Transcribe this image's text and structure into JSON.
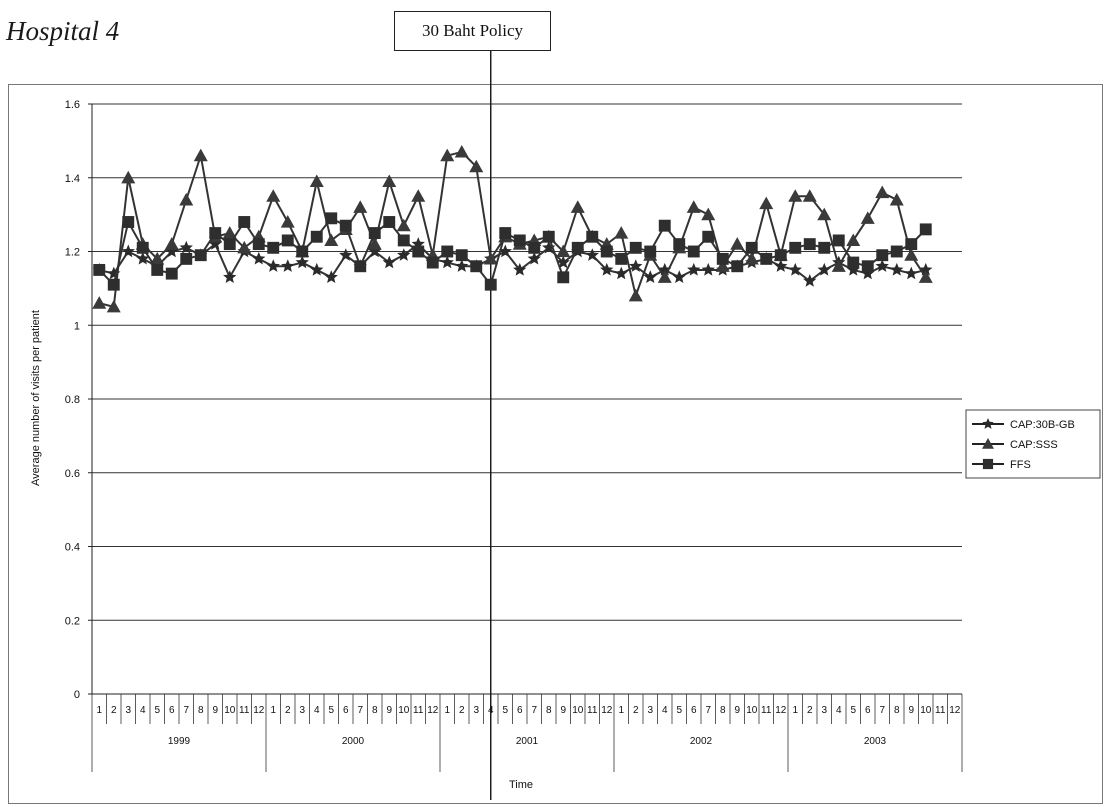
{
  "page_title": "Hospital 4",
  "annotation": {
    "label": "30 Baht Policy",
    "x": "2001-04"
  },
  "chart_data": {
    "type": "line",
    "xlabel": "Time",
    "ylabel": "Average number of visits per patient",
    "ylim": [
      0,
      1.6
    ],
    "yticks": [
      0,
      0.2,
      0.4,
      0.6,
      0.8,
      1,
      1.2,
      1.4,
      1.6
    ],
    "ytick_labels": [
      "0",
      "0.2",
      "0.4",
      "0.6",
      "0.8",
      "1",
      "1.2",
      "1.4",
      "1.6"
    ],
    "grid": true,
    "legend_position": "right",
    "years": [
      "1999",
      "2000",
      "2001",
      "2002",
      "2003"
    ],
    "months": [
      "1",
      "2",
      "3",
      "4",
      "5",
      "6",
      "7",
      "8",
      "9",
      "10",
      "11",
      "12"
    ],
    "x": [
      "1999-01",
      "1999-02",
      "1999-03",
      "1999-04",
      "1999-05",
      "1999-06",
      "1999-07",
      "1999-08",
      "1999-09",
      "1999-10",
      "1999-11",
      "1999-12",
      "2000-01",
      "2000-02",
      "2000-03",
      "2000-04",
      "2000-05",
      "2000-06",
      "2000-07",
      "2000-08",
      "2000-09",
      "2000-10",
      "2000-11",
      "2000-12",
      "2001-01",
      "2001-02",
      "2001-03",
      "2001-04",
      "2001-05",
      "2001-06",
      "2001-07",
      "2001-08",
      "2001-09",
      "2001-10",
      "2001-11",
      "2001-12",
      "2002-01",
      "2002-02",
      "2002-03",
      "2002-04",
      "2002-05",
      "2002-06",
      "2002-07",
      "2002-08",
      "2002-09",
      "2002-10",
      "2002-11",
      "2002-12",
      "2003-01",
      "2003-02",
      "2003-03",
      "2003-04",
      "2003-05",
      "2003-06",
      "2003-07",
      "2003-08",
      "2003-09",
      "2003-10"
    ],
    "series": [
      {
        "name": "CAP:30B-GB",
        "marker": "star",
        "values": [
          1.15,
          1.14,
          1.2,
          1.18,
          1.16,
          1.2,
          1.21,
          1.19,
          1.22,
          1.13,
          1.2,
          1.18,
          1.16,
          1.16,
          1.17,
          1.15,
          1.13,
          1.19,
          1.16,
          1.2,
          1.17,
          1.19,
          1.22,
          1.18,
          1.17,
          1.16,
          1.16,
          1.18,
          1.2,
          1.15,
          1.18,
          1.21,
          1.17,
          1.2,
          1.19,
          1.15,
          1.14,
          1.16,
          1.13,
          1.15,
          1.13,
          1.15,
          1.15,
          1.15,
          1.16,
          1.17,
          1.18,
          1.16,
          1.15,
          1.12,
          1.15,
          1.17,
          1.15,
          1.14,
          1.16,
          1.15,
          1.14,
          1.15
        ]
      },
      {
        "name": "CAP:SSS",
        "marker": "triangle",
        "values": [
          1.06,
          1.05,
          1.4,
          1.22,
          1.18,
          1.22,
          1.34,
          1.46,
          1.24,
          1.25,
          1.21,
          1.24,
          1.35,
          1.28,
          1.2,
          1.39,
          1.23,
          1.26,
          1.32,
          1.22,
          1.39,
          1.27,
          1.35,
          1.19,
          1.46,
          1.47,
          1.43,
          1.18,
          1.24,
          1.22,
          1.23,
          1.24,
          1.2,
          1.32,
          1.24,
          1.22,
          1.25,
          1.08,
          1.19,
          1.13,
          1.21,
          1.32,
          1.3,
          1.16,
          1.22,
          1.18,
          1.33,
          1.19,
          1.35,
          1.35,
          1.3,
          1.16,
          1.23,
          1.29,
          1.36,
          1.34,
          1.19,
          1.13
        ]
      },
      {
        "name": "FFS",
        "marker": "square",
        "values": [
          1.15,
          1.11,
          1.28,
          1.21,
          1.15,
          1.14,
          1.18,
          1.19,
          1.25,
          1.22,
          1.28,
          1.22,
          1.21,
          1.23,
          1.2,
          1.24,
          1.29,
          1.27,
          1.16,
          1.25,
          1.28,
          1.23,
          1.2,
          1.17,
          1.2,
          1.19,
          1.16,
          1.11,
          1.25,
          1.23,
          1.21,
          1.24,
          1.13,
          1.21,
          1.24,
          1.2,
          1.18,
          1.21,
          1.2,
          1.27,
          1.22,
          1.2,
          1.24,
          1.18,
          1.16,
          1.21,
          1.18,
          1.19,
          1.21,
          1.22,
          1.21,
          1.23,
          1.17,
          1.16,
          1.19,
          1.2,
          1.22,
          1.26
        ]
      }
    ]
  }
}
